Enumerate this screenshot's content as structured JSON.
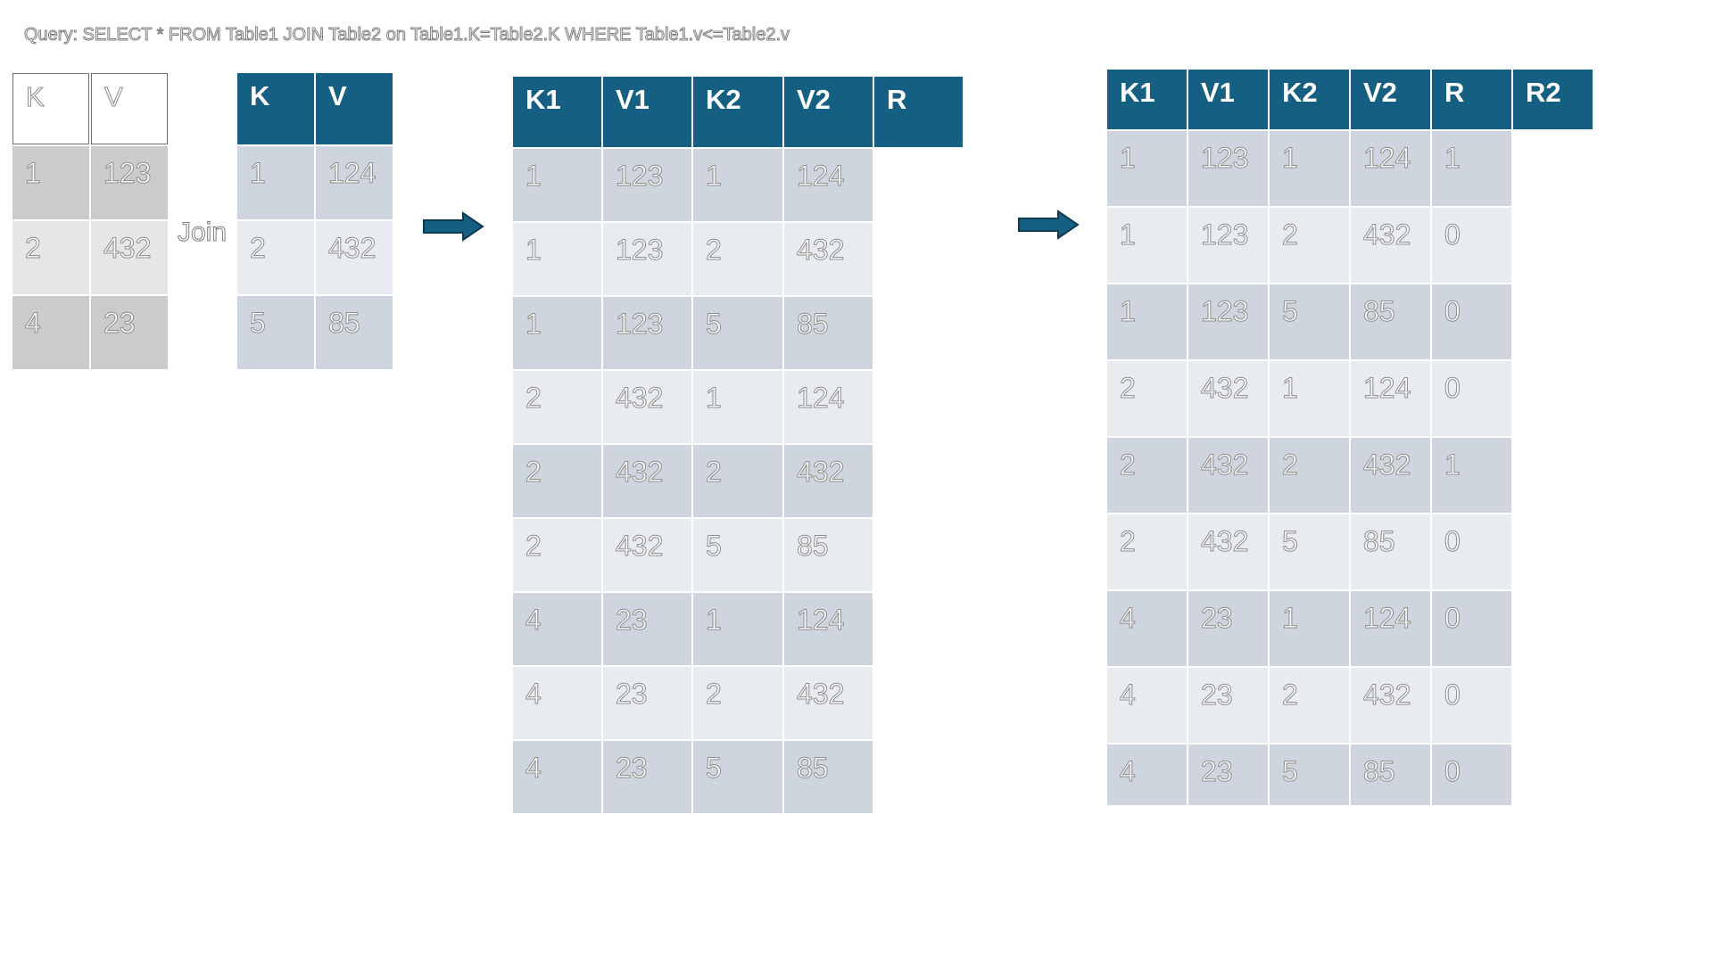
{
  "query": "Query: SELECT * FROM Table1 JOIN Table2 on Table1.K=Table2.K WHERE Table1.v<=Table2.v",
  "join_label": "Join",
  "table1": {
    "headers": [
      "K",
      "V"
    ],
    "rows": [
      [
        "1",
        "123"
      ],
      [
        "2",
        "432"
      ],
      [
        "4",
        "23"
      ]
    ]
  },
  "table2": {
    "headers": [
      "K",
      "V"
    ],
    "rows": [
      [
        "1",
        "124"
      ],
      [
        "2",
        "432"
      ],
      [
        "5",
        "85"
      ]
    ]
  },
  "cross_join": {
    "headers": [
      "K1",
      "V1",
      "K2",
      "V2",
      "R"
    ],
    "rows": [
      [
        "1",
        "123",
        "1",
        "124"
      ],
      [
        "1",
        "123",
        "2",
        "432"
      ],
      [
        "1",
        "123",
        "5",
        "85"
      ],
      [
        "2",
        "432",
        "1",
        "124"
      ],
      [
        "2",
        "432",
        "2",
        "432"
      ],
      [
        "2",
        "432",
        "5",
        "85"
      ],
      [
        "4",
        "23",
        "1",
        "124"
      ],
      [
        "4",
        "23",
        "2",
        "432"
      ],
      [
        "4",
        "23",
        "5",
        "85"
      ]
    ]
  },
  "result": {
    "headers": [
      "K1",
      "V1",
      "K2",
      "V2",
      "R",
      "R2"
    ],
    "rows": [
      [
        "1",
        "123",
        "1",
        "124",
        "1"
      ],
      [
        "1",
        "123",
        "2",
        "432",
        "0"
      ],
      [
        "1",
        "123",
        "5",
        "85",
        "0"
      ],
      [
        "2",
        "432",
        "1",
        "124",
        "0"
      ],
      [
        "2",
        "432",
        "2",
        "432",
        "1"
      ],
      [
        "2",
        "432",
        "5",
        "85",
        "0"
      ],
      [
        "4",
        "23",
        "1",
        "124",
        "0"
      ],
      [
        "4",
        "23",
        "2",
        "432",
        "0"
      ],
      [
        "4",
        "23",
        "5",
        "85",
        "0"
      ]
    ]
  },
  "colors": {
    "header_blue": "#156082",
    "row_light": "#e8ebef",
    "row_dark": "#cfd5de"
  },
  "icons": [
    "right-arrow-icon",
    "right-arrow-icon"
  ]
}
